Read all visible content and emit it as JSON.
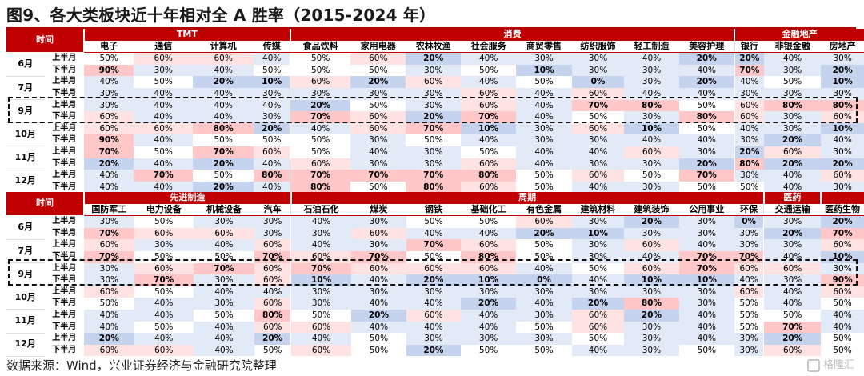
{
  "title": "图9、各大类板块近十年相对全 A 胜率（2015-2024 年）",
  "source": "数据来源：Wind，兴业证券经济与金融研究院整理",
  "watermark": "格隆汇",
  "time_header": "时间",
  "half_labels": [
    "上半月",
    "下半月"
  ],
  "months": [
    "6月",
    "7月",
    "9月",
    "10月",
    "11月",
    "12月"
  ],
  "colors": {
    "header_red": "#c00000",
    "high_1": "#ffc7c7",
    "high_2": "#ffe3e3",
    "low_1": "#c5d3ef",
    "low_2": "#e3eaf7",
    "neutral": "#ffffff"
  },
  "top": {
    "groups": [
      {
        "name": "TMT",
        "span": 4
      },
      {
        "name": "消费",
        "span": 8
      },
      {
        "name": "金融地产",
        "span": 3
      }
    ],
    "sectors": [
      "电子",
      "通信",
      "计算机",
      "传媒",
      "食品饮料",
      "家用电器",
      "农林牧渔",
      "社会服务",
      "商贸零售",
      "纺织服饰",
      "轻工制造",
      "美容护理",
      "银行",
      "非银金融",
      "房地产"
    ],
    "rows": [
      [
        "50%",
        "60%",
        "60%",
        "40%",
        "50%",
        "60%",
        "20%",
        "40%",
        "30%",
        "30%",
        "40%",
        "20%",
        "20%",
        "40%",
        "30%"
      ],
      [
        "90%",
        "30%",
        "40%",
        "50%",
        "50%",
        "50%",
        "30%",
        "50%",
        "10%",
        "30%",
        "30%",
        "40%",
        "70%",
        "30%",
        "20%"
      ],
      [
        "40%",
        "50%",
        "20%",
        "10%",
        "60%",
        "20%",
        "60%",
        "40%",
        "50%",
        "0%",
        "30%",
        "20%",
        "40%",
        "50%",
        "10%"
      ],
      [
        "30%",
        "40%",
        "40%",
        "30%",
        "30%",
        "30%",
        "30%",
        "60%",
        "40%",
        "60%",
        "40%",
        "40%",
        "30%",
        "30%",
        "30%"
      ],
      [
        "30%",
        "40%",
        "40%",
        "40%",
        "20%",
        "50%",
        "30%",
        "60%",
        "40%",
        "70%",
        "80%",
        "50%",
        "60%",
        "80%",
        "80%"
      ],
      [
        "60%",
        "40%",
        "40%",
        "30%",
        "70%",
        "60%",
        "20%",
        "70%",
        "40%",
        "50%",
        "30%",
        "80%",
        "60%",
        "30%",
        "60%"
      ],
      [
        "60%",
        "60%",
        "80%",
        "20%",
        "40%",
        "60%",
        "70%",
        "10%",
        "30%",
        "60%",
        "10%",
        "50%",
        "40%",
        "30%",
        "10%"
      ],
      [
        "90%",
        "40%",
        "50%",
        "50%",
        "50%",
        "30%",
        "50%",
        "40%",
        "30%",
        "30%",
        "40%",
        "40%",
        "30%",
        "20%",
        "40%"
      ],
      [
        "70%",
        "50%",
        "70%",
        "60%",
        "50%",
        "40%",
        "30%",
        "50%",
        "40%",
        "40%",
        "60%",
        "30%",
        "20%",
        "60%",
        "30%"
      ],
      [
        "20%",
        "40%",
        "20%",
        "40%",
        "60%",
        "30%",
        "30%",
        "60%",
        "40%",
        "30%",
        "30%",
        "20%",
        "80%",
        "20%",
        "20%"
      ],
      [
        "40%",
        "70%",
        "50%",
        "80%",
        "70%",
        "70%",
        "70%",
        "80%",
        "50%",
        "60%",
        "50%",
        "70%",
        "30%",
        "40%",
        "60%"
      ],
      [
        "40%",
        "40%",
        "20%",
        "40%",
        "80%",
        "50%",
        "80%",
        "60%",
        "50%",
        "40%",
        "30%",
        "50%",
        "50%",
        "40%",
        "30%"
      ]
    ]
  },
  "bottom": {
    "groups": [
      {
        "name": "",
        "span": 0
      },
      {
        "name": "先进制造",
        "span": 4
      },
      {
        "name": "周期",
        "span": 9
      },
      {
        "name": "医药",
        "span": 1
      }
    ],
    "sectors": [
      "国防军工",
      "电力设备",
      "机械设备",
      "汽车",
      "石油石化",
      "煤炭",
      "钢铁",
      "基础化工",
      "有色金属",
      "建筑材料",
      "建筑装饰",
      "公用事业",
      "环保",
      "交通运输",
      "医药生物"
    ],
    "rows": [
      [
        "30%",
        "50%",
        "30%",
        "30%",
        "40%",
        "30%",
        "50%",
        "50%",
        "60%",
        "30%",
        "20%",
        "30%",
        "0%",
        "30%",
        "20%"
      ],
      [
        "70%",
        "60%",
        "60%",
        "30%",
        "30%",
        "60%",
        "40%",
        "40%",
        "20%",
        "10%",
        "30%",
        "30%",
        "30%",
        "20%",
        "70%"
      ],
      [
        "60%",
        "30%",
        "40%",
        "60%",
        "40%",
        "30%",
        "70%",
        "60%",
        "50%",
        "30%",
        "60%",
        "40%",
        "30%",
        "30%",
        "60%"
      ],
      [
        "70%",
        "50%",
        "50%",
        "70%",
        "60%",
        "70%",
        "50%",
        "80%",
        "50%",
        "30%",
        "40%",
        "70%",
        "70%",
        "40%",
        "10%"
      ],
      [
        "30%",
        "60%",
        "70%",
        "60%",
        "70%",
        "60%",
        "60%",
        "60%",
        "40%",
        "50%",
        "60%",
        "70%",
        "60%",
        "60%",
        "30%"
      ],
      [
        "30%",
        "70%",
        "30%",
        "60%",
        "10%",
        "40%",
        "20%",
        "10%",
        "0%",
        "40%",
        "10%",
        "10%",
        "40%",
        "30%",
        "90%"
      ],
      [
        "60%",
        "50%",
        "40%",
        "40%",
        "30%",
        "30%",
        "30%",
        "30%",
        "30%",
        "30%",
        "30%",
        "30%",
        "60%",
        "40%",
        "60%"
      ],
      [
        "50%",
        "40%",
        "30%",
        "60%",
        "30%",
        "40%",
        "40%",
        "20%",
        "40%",
        "20%",
        "80%",
        "30%",
        "50%",
        "40%",
        "50%"
      ],
      [
        "40%",
        "40%",
        "50%",
        "80%",
        "50%",
        "20%",
        "60%",
        "40%",
        "30%",
        "60%",
        "20%",
        "40%",
        "50%",
        "50%",
        "40%"
      ],
      [
        "40%",
        "50%",
        "40%",
        "60%",
        "60%",
        "40%",
        "40%",
        "40%",
        "50%",
        "60%",
        "30%",
        "40%",
        "50%",
        "70%",
        "40%"
      ],
      [
        "20%",
        "40%",
        "40%",
        "20%",
        "40%",
        "50%",
        "30%",
        "30%",
        "30%",
        "50%",
        "30%",
        "40%",
        "30%",
        "20%",
        "50%"
      ],
      [
        "60%",
        "60%",
        "40%",
        "50%",
        "60%",
        "50%",
        "20%",
        "50%",
        "50%",
        "40%",
        "30%",
        "50%",
        "30%",
        "60%",
        "50%"
      ]
    ]
  }
}
